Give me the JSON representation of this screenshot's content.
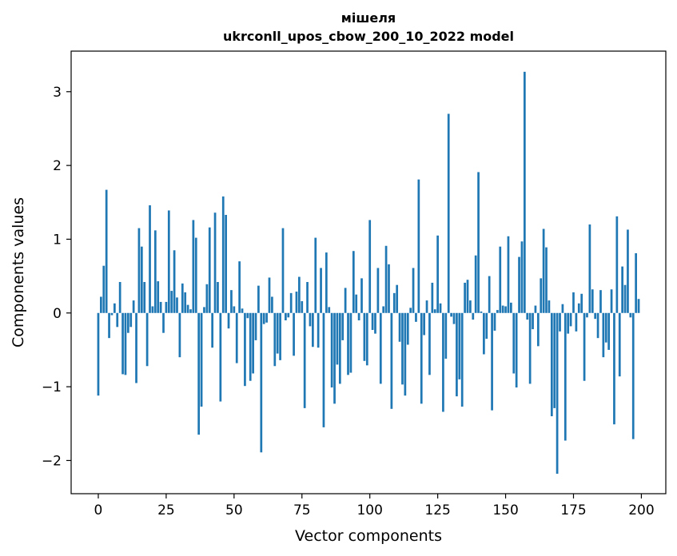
{
  "chart_data": {
    "type": "bar",
    "title_line1": "мішеля",
    "title_line2": "ukrconll_upos_cbow_200_10_2022 model",
    "xlabel": "Vector components",
    "ylabel": "Components values",
    "xlim": [
      -10,
      209
    ],
    "ylim": [
      -2.45,
      3.55
    ],
    "xticks": [
      0,
      25,
      50,
      75,
      100,
      125,
      150,
      175,
      200
    ],
    "xtick_labels": [
      "0",
      "25",
      "50",
      "75",
      "100",
      "125",
      "150",
      "175",
      "200"
    ],
    "yticks": [
      -2,
      -1,
      0,
      1,
      2,
      3
    ],
    "ytick_labels": [
      "−2",
      "−1",
      "0",
      "1",
      "2",
      "3"
    ],
    "bar_color": "#1f77b4",
    "values": [
      -1.12,
      0.22,
      0.64,
      1.67,
      -0.34,
      -0.03,
      0.13,
      -0.19,
      0.42,
      -0.83,
      -0.84,
      -0.27,
      -0.19,
      0.17,
      -0.95,
      1.15,
      0.9,
      0.42,
      -0.72,
      1.46,
      0.09,
      1.12,
      0.43,
      0.15,
      -0.27,
      0.15,
      1.39,
      0.3,
      0.85,
      0.21,
      -0.6,
      0.4,
      0.28,
      0.11,
      0.05,
      1.26,
      1.02,
      -1.65,
      -1.27,
      0.08,
      0.39,
      1.16,
      -0.47,
      1.36,
      0.42,
      -1.2,
      1.58,
      1.33,
      -0.21,
      0.31,
      0.09,
      -0.68,
      0.7,
      0.06,
      -0.99,
      -0.07,
      -0.92,
      -0.82,
      -0.37,
      0.37,
      -1.89,
      -0.15,
      -0.13,
      0.48,
      0.22,
      -0.72,
      -0.55,
      -0.64,
      1.15,
      -0.1,
      -0.06,
      0.27,
      -0.58,
      0.29,
      0.49,
      0.16,
      -1.29,
      0.42,
      -0.18,
      -0.46,
      1.02,
      -0.47,
      0.61,
      -1.55,
      0.82,
      0.08,
      -1.01,
      -1.23,
      -0.7,
      -0.96,
      -0.37,
      0.34,
      -0.84,
      -0.81,
      0.84,
      0.25,
      -0.1,
      0.47,
      -0.65,
      -0.71,
      1.26,
      -0.23,
      -0.28,
      0.61,
      -0.96,
      0.09,
      0.91,
      0.66,
      -1.3,
      0.27,
      0.38,
      -0.39,
      -0.97,
      -1.12,
      -0.43,
      0.07,
      0.61,
      -0.12,
      1.81,
      -1.23,
      -0.3,
      0.17,
      -0.84,
      0.41,
      0.05,
      1.05,
      0.13,
      -1.34,
      -0.62,
      2.7,
      -0.05,
      -0.15,
      -1.13,
      -0.9,
      -1.27,
      0.41,
      0.45,
      0.17,
      -0.09,
      0.78,
      1.91,
      0.02,
      -0.56,
      -0.35,
      0.5,
      -1.32,
      -0.24,
      0.04,
      0.9,
      0.1,
      0.09,
      1.04,
      0.14,
      -0.82,
      -1.01,
      0.76,
      0.97,
      3.27,
      -0.09,
      -0.96,
      -0.22,
      0.1,
      -0.45,
      0.47,
      1.14,
      0.89,
      0.17,
      -1.4,
      -1.29,
      -2.18,
      -0.25,
      0.12,
      -1.73,
      -0.28,
      -0.18,
      0.28,
      -0.25,
      0.13,
      0.26,
      -0.92,
      -0.06,
      1.2,
      0.32,
      -0.08,
      -0.34,
      0.31,
      -0.6,
      -0.4,
      -0.5,
      0.32,
      -1.51,
      1.31,
      -0.86,
      0.63,
      0.38,
      1.13,
      -0.06,
      -1.71,
      0.81,
      0.19
    ]
  }
}
